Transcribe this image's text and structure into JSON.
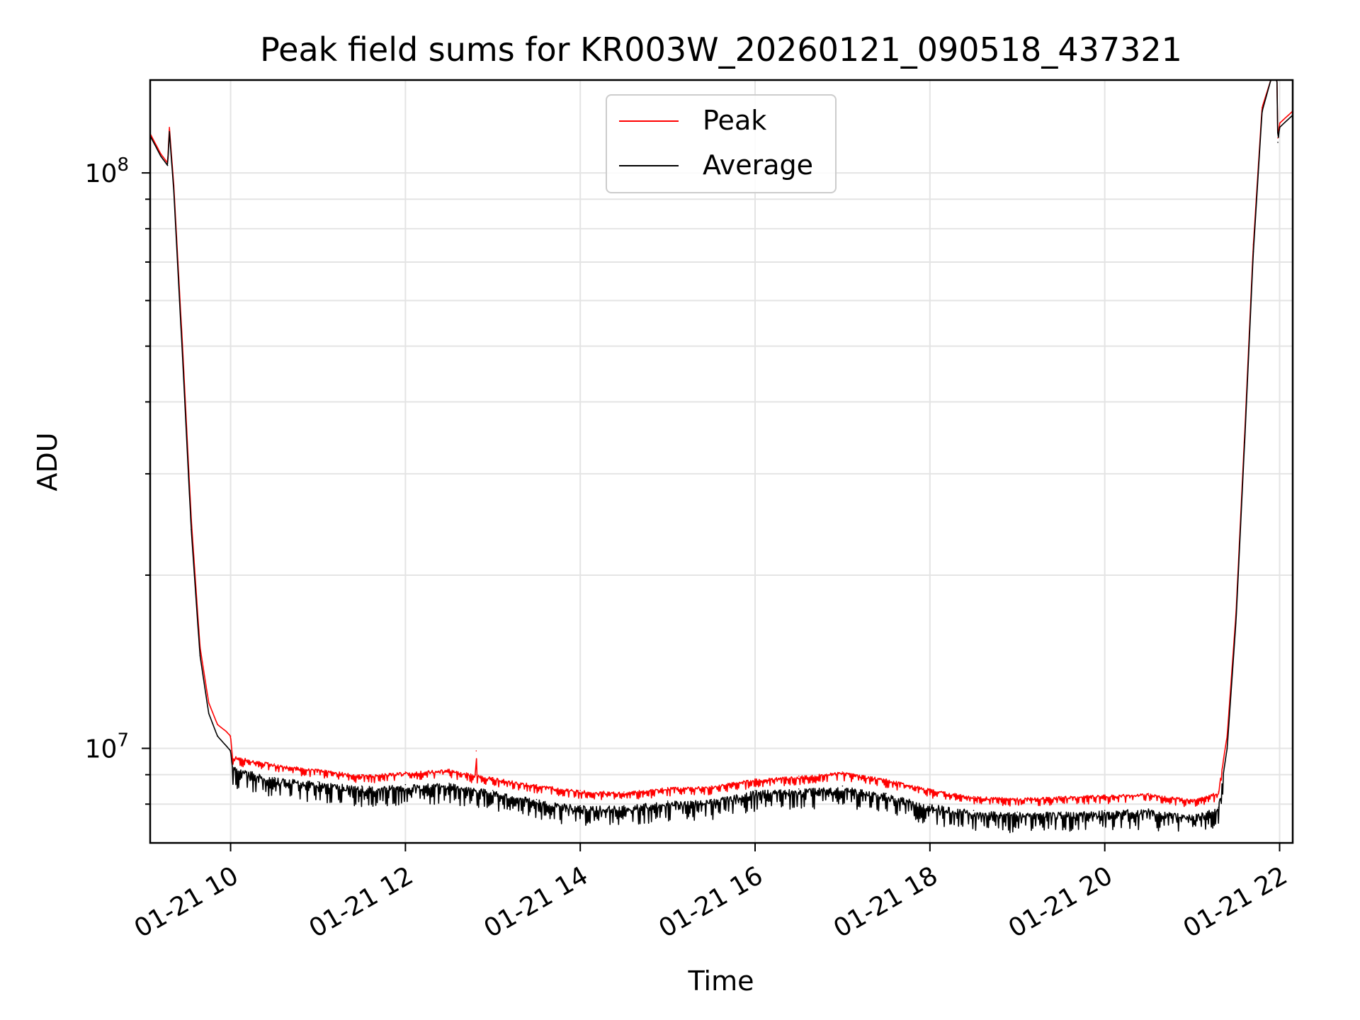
{
  "chart_data": {
    "type": "line",
    "title": "Peak field sums for KR003W_20260121_090518_437321",
    "xlabel": "Time",
    "ylabel": "ADU",
    "yscale": "log",
    "xlim": [
      9.08,
      22.15
    ],
    "ylim": [
      6850000.0,
      145000000.0
    ],
    "xticks": [
      {
        "value": 10,
        "label": "01-21 10"
      },
      {
        "value": 12,
        "label": "01-21 12"
      },
      {
        "value": 14,
        "label": "01-21 14"
      },
      {
        "value": 16,
        "label": "01-21 16"
      },
      {
        "value": 18,
        "label": "01-21 18"
      },
      {
        "value": 20,
        "label": "01-21 20"
      },
      {
        "value": 22,
        "label": "01-21 22"
      }
    ],
    "yticks_major": [
      {
        "value": 10000000,
        "base": "10",
        "exp": "7"
      },
      {
        "value": 100000000,
        "base": "10",
        "exp": "8"
      }
    ],
    "yticks_minor": [
      8000000,
      9000000,
      20000000,
      30000000,
      40000000,
      50000000,
      60000000,
      70000000,
      80000000,
      90000000
    ],
    "grid": true,
    "legend_position": "top-center",
    "series": [
      {
        "name": "Peak",
        "color": "#ff0000",
        "x": [
          9.08,
          9.2,
          9.28,
          9.3,
          9.35,
          9.45,
          9.55,
          9.65,
          9.75,
          9.85,
          9.95,
          10.0,
          10.02,
          10.5,
          11.0,
          11.5,
          12.0,
          12.5,
          12.8,
          12.81,
          12.82,
          13.0,
          13.5,
          14.0,
          14.5,
          15.0,
          15.5,
          16.0,
          16.5,
          17.0,
          17.5,
          18.0,
          18.5,
          19.0,
          19.5,
          20.0,
          20.5,
          21.0,
          21.3,
          21.4,
          21.5,
          21.6,
          21.7,
          21.8,
          21.9,
          21.97,
          21.98,
          22.0,
          22.15
        ],
        "y": [
          117000000,
          108000000,
          104000000,
          120000000,
          95000000,
          50000000,
          25000000,
          15000000,
          12000000,
          11000000,
          10700000,
          10500000,
          9700000,
          9400000,
          9200000,
          9000000,
          9100000,
          9200000,
          9000000,
          9900000,
          9000000,
          8900000,
          8650000,
          8450000,
          8400000,
          8550000,
          8600000,
          8850000,
          8950000,
          9100000,
          8850000,
          8500000,
          8250000,
          8200000,
          8250000,
          8300000,
          8350000,
          8150000,
          8400000,
          10500000,
          17000000,
          35000000,
          75000000,
          130000000,
          145000000,
          145000000,
          115000000,
          122000000,
          128000000
        ]
      },
      {
        "name": "Average",
        "color": "#000000",
        "x": [
          9.08,
          9.2,
          9.28,
          9.3,
          9.35,
          9.45,
          9.55,
          9.65,
          9.75,
          9.85,
          9.95,
          10.0,
          10.02,
          10.5,
          11.0,
          11.5,
          12.0,
          12.5,
          13.0,
          13.5,
          14.0,
          14.5,
          15.0,
          15.5,
          16.0,
          16.5,
          17.0,
          17.5,
          18.0,
          18.5,
          19.0,
          19.5,
          20.0,
          20.5,
          21.0,
          21.3,
          21.4,
          21.5,
          21.6,
          21.7,
          21.8,
          21.9,
          21.97,
          21.98,
          22.0,
          22.15
        ],
        "y": [
          116000000,
          107000000,
          103000000,
          118000000,
          93000000,
          48000000,
          24000000,
          14500000,
          11500000,
          10500000,
          10100000,
          9900000,
          9300000,
          8900000,
          8750000,
          8600000,
          8650000,
          8700000,
          8450000,
          8150000,
          7950000,
          7950000,
          8100000,
          8150000,
          8450000,
          8500000,
          8600000,
          8350000,
          8000000,
          7800000,
          7750000,
          7750000,
          7800000,
          7850000,
          7650000,
          7900000,
          10000000,
          16500000,
          34000000,
          73000000,
          128000000,
          145000000,
          145000000,
          113000000,
          120000000,
          126000000
        ]
      }
    ]
  }
}
